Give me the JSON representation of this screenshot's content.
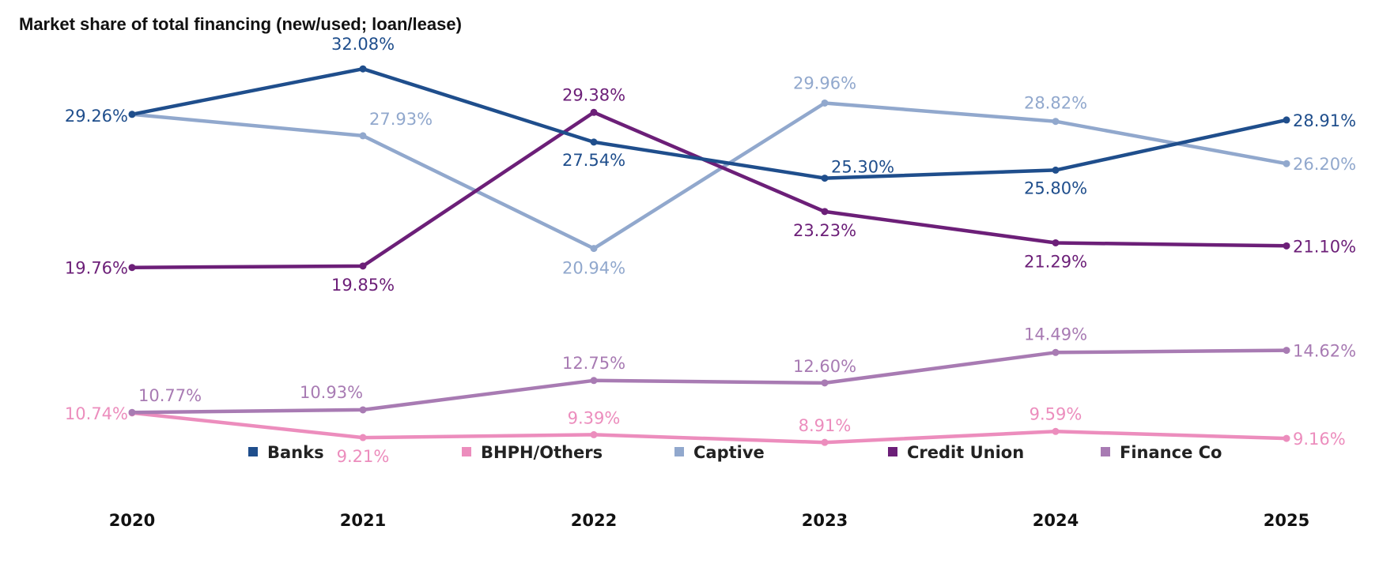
{
  "chart_data": {
    "type": "line",
    "title": "Market share of total financing (new/used; loan/lease)",
    "xlabel": "",
    "ylabel": "",
    "x": [
      "2020",
      "2021",
      "2022",
      "2023",
      "2024",
      "2025"
    ],
    "ylim": [
      5,
      34
    ],
    "grid": false,
    "legend": "bottom-center",
    "series": [
      {
        "name": "Banks",
        "color": "#1f4e8c",
        "values": [
          29.26,
          32.08,
          27.54,
          25.3,
          25.8,
          28.91
        ],
        "labels": [
          "29.26%",
          "32.08%",
          "27.54%",
          "25.30%",
          "25.80%",
          "28.91%"
        ]
      },
      {
        "name": "BHPH/Others",
        "color": "#ec8dbd",
        "values": [
          10.74,
          9.21,
          9.39,
          8.91,
          9.59,
          9.16
        ],
        "labels": [
          "10.74%",
          "9.21%",
          "9.39%",
          "8.91%",
          "9.59%",
          "9.16%"
        ]
      },
      {
        "name": "Captive",
        "color": "#91a8cd",
        "values": [
          29.26,
          27.93,
          20.94,
          29.96,
          28.82,
          26.2
        ],
        "labels": [
          "",
          "27.93%",
          "20.94%",
          "29.96%",
          "28.82%",
          "26.20%"
        ]
      },
      {
        "name": "Credit Union",
        "color": "#6c1f78",
        "values": [
          19.76,
          19.85,
          29.38,
          23.23,
          21.29,
          21.1
        ],
        "labels": [
          "19.76%",
          "19.85%",
          "29.38%",
          "23.23%",
          "21.29%",
          "21.10%"
        ]
      },
      {
        "name": "Finance Co",
        "color": "#a87bb3",
        "values": [
          10.77,
          10.93,
          12.75,
          12.6,
          14.49,
          14.62
        ],
        "labels": [
          "10.77%",
          "10.93%",
          "12.75%",
          "12.60%",
          "14.49%",
          "14.62%"
        ]
      }
    ]
  }
}
